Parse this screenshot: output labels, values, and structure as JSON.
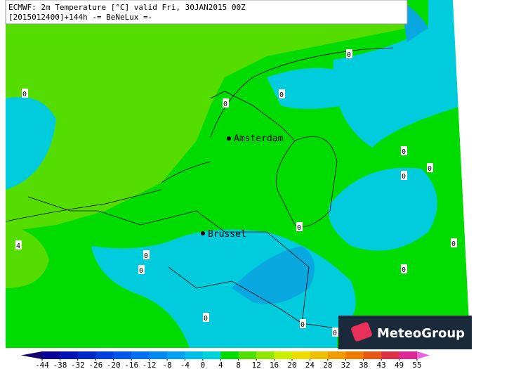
{
  "header": {
    "line1": "ECMWF: 2m Temperature [°C] valid Fri, 30JAN2015 00Z",
    "line2": "[2015012400]+144h  -= BeNeLux =-"
  },
  "cities": [
    "Amsterdam",
    "Brussel"
  ],
  "contour_labels": [
    0,
    0,
    0,
    0,
    0,
    0,
    0,
    0,
    0,
    4,
    0,
    0,
    0,
    0,
    0,
    0
  ],
  "logo": "MeteoGroup",
  "colorbar": {
    "ticks": [
      -44,
      -38,
      -32,
      -26,
      -20,
      -16,
      -12,
      -8,
      -4,
      0,
      4,
      8,
      12,
      16,
      20,
      24,
      28,
      32,
      38,
      43,
      49,
      55
    ],
    "colors": [
      "#14006e",
      "#0a0096",
      "#0014b4",
      "#0028c8",
      "#0040dc",
      "#0058e6",
      "#0070f0",
      "#0088f0",
      "#00a0f0",
      "#00bce8",
      "#00d2dc",
      "#00dc00",
      "#50e000",
      "#90e600",
      "#c8ee00",
      "#eedc00",
      "#f0be00",
      "#f09c00",
      "#ee7a00",
      "#e45a14",
      "#dc3246",
      "#dc2896",
      "#f060dc"
    ]
  }
}
